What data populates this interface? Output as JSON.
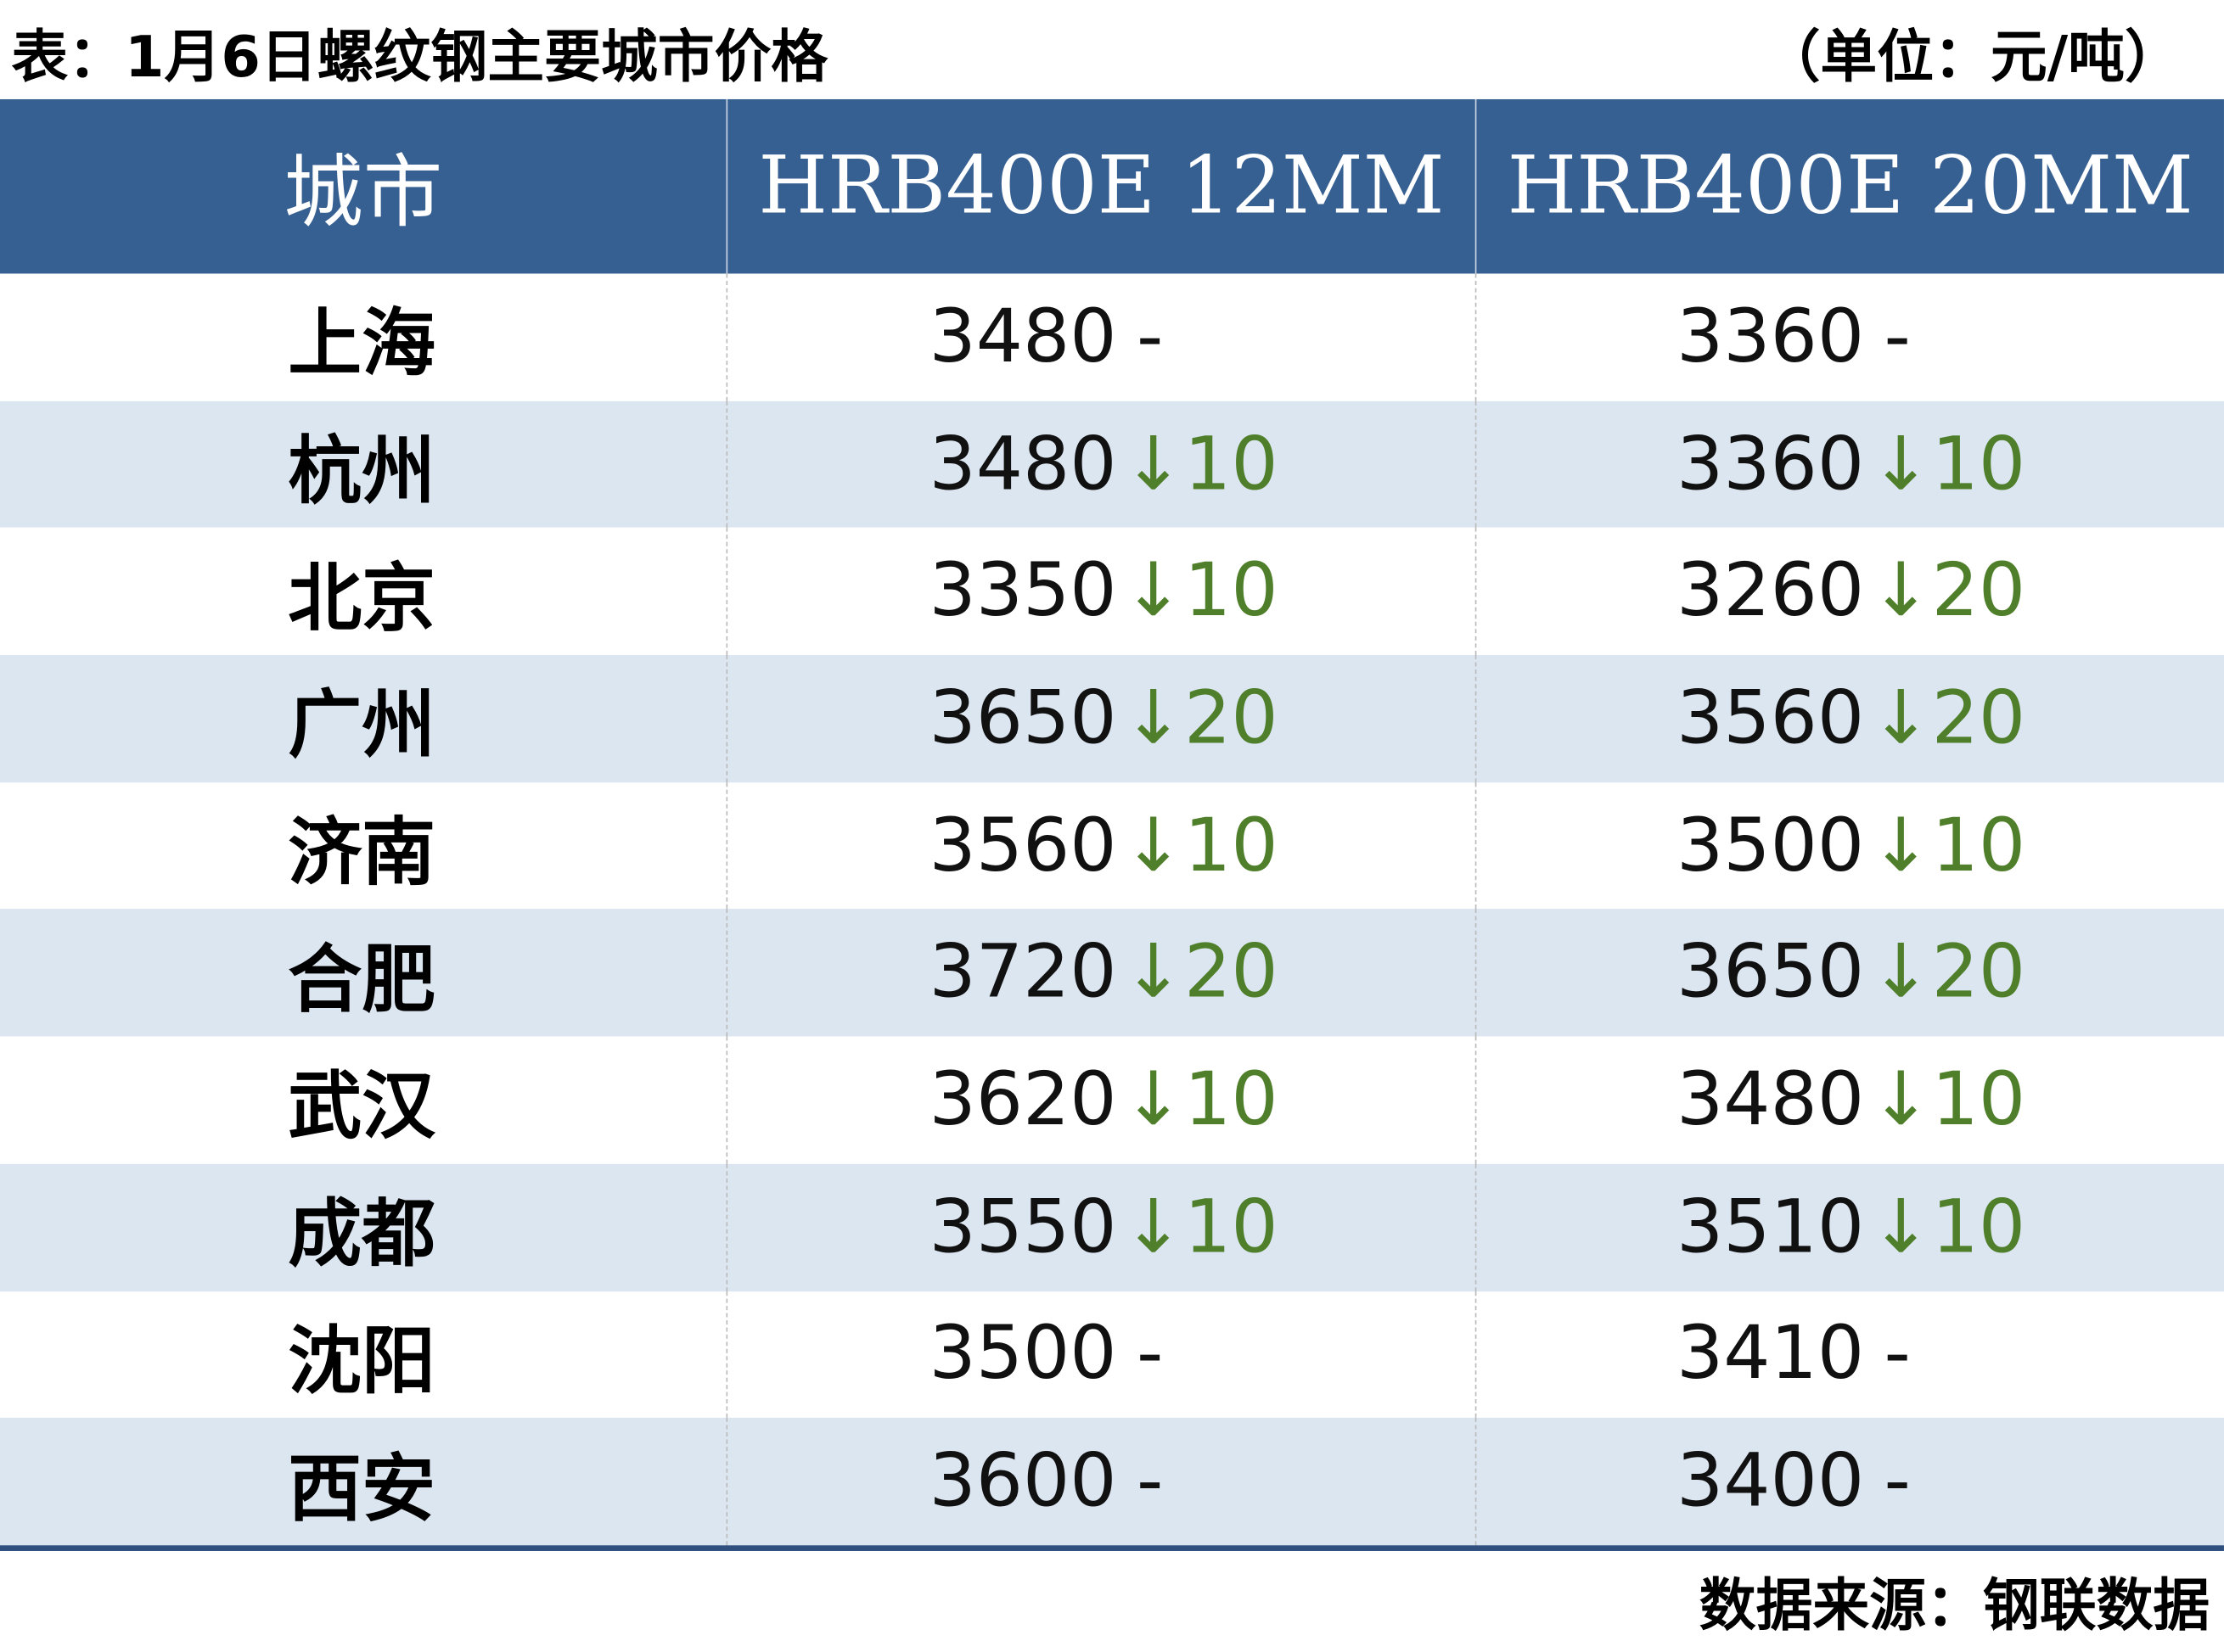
{
  "title": "表：1月6日螺纹钢主要城市价格",
  "unit": "（单位：元/吨）",
  "headers": [
    "城市",
    "HRB400E  12MM",
    "HRB400E  20MM"
  ],
  "colors": {
    "header_bg": "#376092",
    "alt_row": "#dce6f1",
    "down": "#4f7f2a"
  },
  "rows": [
    {
      "city": "上海",
      "p12": "3480",
      "c12": "-",
      "p20": "3360",
      "c20": "-"
    },
    {
      "city": "杭州",
      "p12": "3480",
      "c12": "↓10",
      "p20": "3360",
      "c20": "↓10"
    },
    {
      "city": "北京",
      "p12": "3350",
      "c12": "↓10",
      "p20": "3260",
      "c20": "↓20"
    },
    {
      "city": "广州",
      "p12": "3650",
      "c12": "↓20",
      "p20": "3560",
      "c20": "↓20"
    },
    {
      "city": "济南",
      "p12": "3560",
      "c12": "↓10",
      "p20": "3500",
      "c20": "↓10"
    },
    {
      "city": "合肥",
      "p12": "3720",
      "c12": "↓20",
      "p20": "3650",
      "c20": "↓20"
    },
    {
      "city": "武汉",
      "p12": "3620",
      "c12": "↓10",
      "p20": "3480",
      "c20": "↓10"
    },
    {
      "city": "成都",
      "p12": "3550",
      "c12": "↓10",
      "p20": "3510",
      "c20": "↓10"
    },
    {
      "city": "沈阳",
      "p12": "3500",
      "c12": "-",
      "p20": "3410",
      "c20": "-"
    },
    {
      "city": "西安",
      "p12": "3600",
      "c12": "-",
      "p20": "3400",
      "c20": "-"
    }
  ],
  "source": "数据来源：钢联数据"
}
